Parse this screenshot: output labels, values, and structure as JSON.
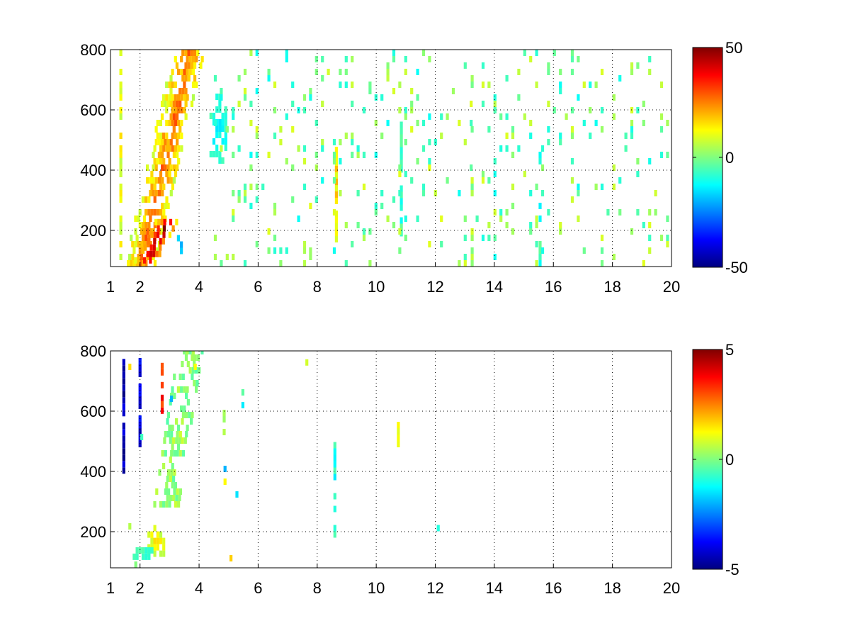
{
  "chart_data": [
    {
      "type": "heatmap",
      "title": "",
      "xlabel": "",
      "ylabel": "",
      "xlim": [
        1,
        20
      ],
      "ylim": [
        80,
        800
      ],
      "xticks": [
        "1",
        "2",
        "4",
        "6",
        "8",
        "10",
        "12",
        "14",
        "16",
        "18",
        "20"
      ],
      "yticks": [
        "200",
        "400",
        "600",
        "800"
      ],
      "grid": true,
      "colormap": "jet",
      "colorbar": {
        "min": -50,
        "max": 50,
        "ticks": [
          "50",
          "0",
          "-50"
        ]
      },
      "features": [
        {
          "kind": "band",
          "x0": 2.0,
          "y0": 80,
          "x1": 3.7,
          "y1": 800,
          "value": 22,
          "width": 0.55,
          "density": 0.85
        },
        {
          "kind": "band",
          "x0": 2.2,
          "y0": 90,
          "x1": 2.9,
          "y1": 220,
          "value": 38,
          "width": 0.4,
          "density": 0.9
        },
        {
          "kind": "blob",
          "x": 4.6,
          "y": 520,
          "rx": 0.35,
          "ry": 120,
          "value": -12,
          "density": 0.6
        },
        {
          "kind": "blob",
          "x": 3.3,
          "y": 140,
          "rx": 0.15,
          "ry": 40,
          "value": -18,
          "density": 0.8
        },
        {
          "kind": "column",
          "x": 1.3,
          "y0": 80,
          "y1": 800,
          "value": 10,
          "density": 0.5
        },
        {
          "kind": "column",
          "x": 8.6,
          "y0": 160,
          "y1": 470,
          "value": 14,
          "density": 0.85
        },
        {
          "kind": "column",
          "x": 10.8,
          "y0": 180,
          "y1": 560,
          "value": -6,
          "density": 0.65
        },
        {
          "kind": "column",
          "x": 15.5,
          "y0": 80,
          "y1": 500,
          "value": -8,
          "density": 0.5
        },
        {
          "kind": "column",
          "x": 13.2,
          "y0": 80,
          "y1": 800,
          "value": 4,
          "density": 0.35
        }
      ],
      "noise": {
        "x_range": [
          4.5,
          20
        ],
        "density": 0.14,
        "value_range": [
          -12,
          10
        ]
      }
    },
    {
      "type": "heatmap",
      "title": "",
      "xlabel": "",
      "ylabel": "",
      "xlim": [
        1,
        20
      ],
      "ylim": [
        80,
        800
      ],
      "xticks": [
        "1",
        "2",
        "4",
        "6",
        "8",
        "10",
        "12",
        "14",
        "16",
        "18",
        "20"
      ],
      "yticks": [
        "200",
        "400",
        "600",
        "800"
      ],
      "grid": true,
      "colormap": "jet",
      "colorbar": {
        "min": -5,
        "max": 5,
        "ticks": [
          "5",
          "0",
          "-5"
        ]
      },
      "features": [
        {
          "kind": "band",
          "x0": 2.9,
          "y0": 280,
          "x1": 3.7,
          "y1": 790,
          "value": 0.2,
          "width": 0.45,
          "density": 0.55
        },
        {
          "kind": "blob",
          "x": 2.5,
          "y": 150,
          "rx": 0.35,
          "ry": 55,
          "value": 1.2,
          "density": 0.7
        },
        {
          "kind": "blob",
          "x": 2.1,
          "y": 110,
          "rx": 0.45,
          "ry": 25,
          "value": -0.8,
          "density": 0.7
        },
        {
          "kind": "column",
          "x": 1.4,
          "y0": 350,
          "y1": 790,
          "value": -4.5,
          "density": 0.8
        },
        {
          "kind": "column",
          "x": 1.95,
          "y0": 480,
          "y1": 760,
          "value": -4.0,
          "density": 0.7
        },
        {
          "kind": "column",
          "x": 2.7,
          "y0": 570,
          "y1": 780,
          "value": 3.5,
          "density": 0.5
        },
        {
          "kind": "column",
          "x": 8.55,
          "y0": 180,
          "y1": 480,
          "value": -1.0,
          "density": 0.6
        },
        {
          "kind": "column",
          "x": 10.7,
          "y0": 480,
          "y1": 560,
          "value": 1.5,
          "density": 0.9
        },
        {
          "kind": "column",
          "x": 4.8,
          "y0": 520,
          "y1": 600,
          "value": 0.8,
          "density": 0.5
        },
        {
          "kind": "column",
          "x": 7.6,
          "y0": 730,
          "y1": 790,
          "value": 1.2,
          "density": 0.6
        },
        {
          "kind": "column",
          "x": 12.05,
          "y0": 180,
          "y1": 210,
          "value": -1.5,
          "density": 0.8
        }
      ],
      "noise": {
        "x_range": [
          1,
          6
        ],
        "density": 0.015,
        "value_range": [
          -2,
          2
        ]
      }
    }
  ]
}
